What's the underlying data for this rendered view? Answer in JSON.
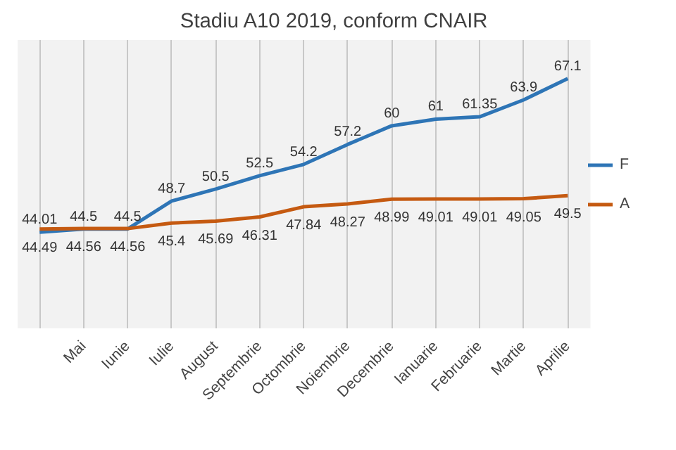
{
  "chart_data": {
    "type": "line",
    "title": "Stadiu A10 2019, conform CNAIR",
    "categories": [
      null,
      "Mai",
      "Iunie",
      "Iulie",
      "August",
      "Septembrie",
      "Octombrie",
      "Noiembrie",
      "Decembrie",
      "Ianuarie",
      "Februarie",
      "Martie",
      "Aprilie"
    ],
    "series": [
      {
        "name": "F",
        "color": "#2e75b6",
        "values": [
          44.01,
          44.5,
          44.5,
          48.7,
          50.5,
          52.5,
          54.2,
          57.2,
          60,
          61,
          61.35,
          63.9,
          67.1
        ]
      },
      {
        "name": "A",
        "color": "#c55a11",
        "values": [
          44.49,
          44.56,
          44.56,
          45.4,
          45.69,
          46.31,
          47.84,
          48.27,
          48.99,
          49.01,
          49.01,
          49.05,
          49.5
        ]
      }
    ],
    "data_labels": true,
    "grid": "x",
    "legend": "right",
    "marker": "none",
    "line_style": "solid"
  }
}
